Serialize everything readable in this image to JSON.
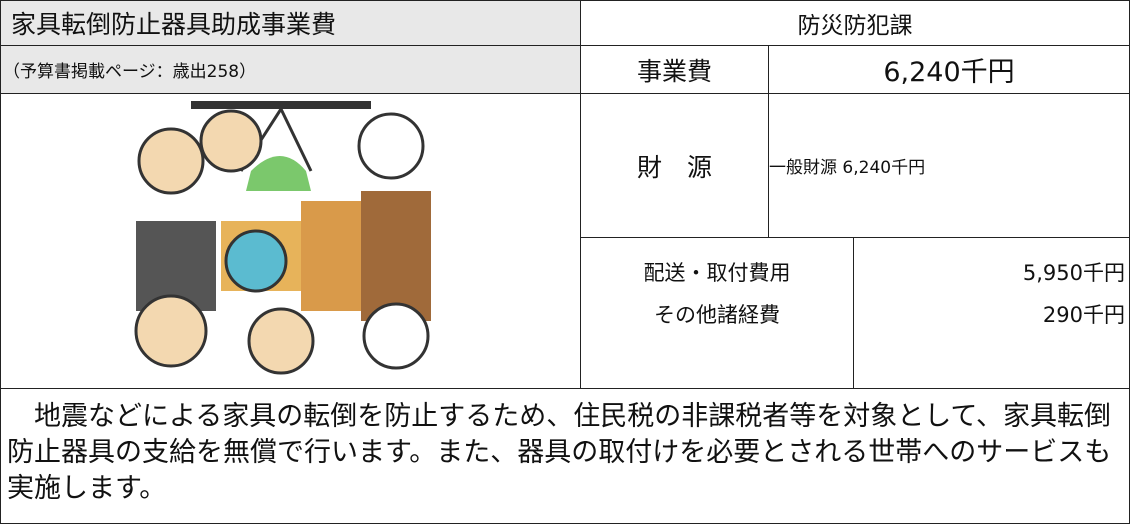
{
  "header": {
    "title": "家具転倒防止器具助成事業費",
    "department": "防災防犯課",
    "budget_page": "（予算書掲載ページ：歳出258）",
    "cost_label": "事業費",
    "cost": "6,240千円"
  },
  "funding": {
    "label": "財　源",
    "value": "一般財源 6,240千円"
  },
  "breakdown": [
    {
      "label": "配送・取付費用",
      "amount": "5,950千円"
    },
    {
      "label": "その他諸経費",
      "amount": "290千円"
    }
  ],
  "description": "　地震などによる家具の転倒を防止するため、住民税の非課税者等を対象として、家具転倒防止器具の支給を無償で行います。また、器具の取付けを必要とされる世帯へのサービスも実施します。"
}
